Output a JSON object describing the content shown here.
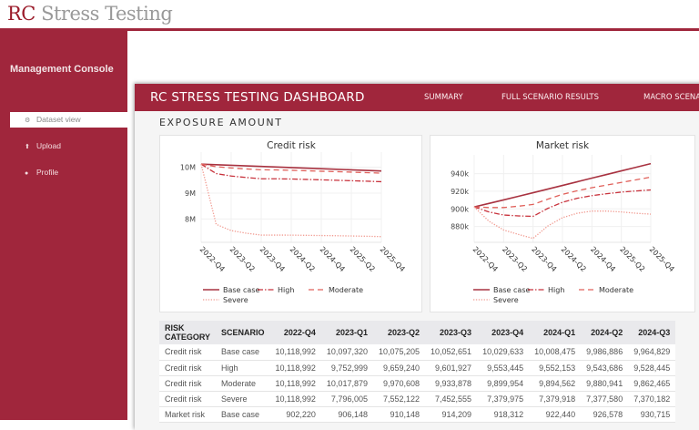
{
  "brand": {
    "rc": "RC",
    "rest": "Stress Testing"
  },
  "sidebar": {
    "title": "Management Console",
    "items": [
      {
        "label": "Dataset view",
        "icon": "gears-icon",
        "active": true
      },
      {
        "label": "Upload",
        "icon": "upload-icon",
        "active": false
      },
      {
        "label": "Profile",
        "icon": "user-icon",
        "active": false
      }
    ]
  },
  "navbar": {
    "title": "RC STRESS TESTING DASHBOARD",
    "links": [
      "SUMMARY",
      "FULL SCENARIO RESULTS",
      "MACRO SCENARIOS"
    ]
  },
  "section_title": "EXPOSURE AMOUNT",
  "colors": {
    "accent": "#a0263c",
    "base": "#a83240",
    "high": "#c8323c",
    "moderate": "#e0605a",
    "severe": "#f19a90"
  },
  "chart_data": [
    {
      "type": "line",
      "title": "Credit risk",
      "x": [
        "2022-Q4",
        "2023-Q1",
        "2023-Q2",
        "2023-Q3",
        "2023-Q4",
        "2024-Q1",
        "2024-Q2",
        "2024-Q3",
        "2024-Q4",
        "2025-Q1",
        "2025-Q2",
        "2025-Q3",
        "2025-Q4"
      ],
      "xticks": [
        "2022-Q4",
        "2023-Q2",
        "2023-Q4",
        "2024-Q2",
        "2024-Q4",
        "2025-Q2",
        "2025-Q4"
      ],
      "yticks": [
        {
          "v": 10000000,
          "label": "10M"
        },
        {
          "v": 9000000,
          "label": "9M"
        },
        {
          "v": 8000000,
          "label": "8M"
        }
      ],
      "ylim": [
        7100000,
        10300000
      ],
      "grid": true,
      "legend": "bottom",
      "series": [
        {
          "name": "Base case",
          "style": "solid",
          "values": [
            10118992,
            10097320,
            10075205,
            10052651,
            10029633,
            10008475,
            9986886,
            9964829,
            9943000,
            9921000,
            9899000,
            9877000,
            9855000
          ]
        },
        {
          "name": "High",
          "style": "dashdot",
          "values": [
            10118992,
            9752999,
            9659240,
            9601927,
            9553445,
            9552153,
            9543686,
            9528445,
            9512000,
            9495000,
            9478000,
            9460000,
            9440000
          ]
        },
        {
          "name": "Moderate",
          "style": "dash",
          "values": [
            10118992,
            10017879,
            9970608,
            9933878,
            9899954,
            9894562,
            9880941,
            9862465,
            9845000,
            9828000,
            9810000,
            9790000,
            9770000
          ]
        },
        {
          "name": "Severe",
          "style": "dot",
          "values": [
            10118992,
            7796005,
            7552122,
            7452555,
            7379975,
            7379918,
            7377580,
            7370182,
            7362000,
            7355000,
            7345000,
            7335000,
            7320000
          ]
        }
      ]
    },
    {
      "type": "line",
      "title": "Market risk",
      "x": [
        "2022-Q4",
        "2023-Q1",
        "2023-Q2",
        "2023-Q3",
        "2023-Q4",
        "2024-Q1",
        "2024-Q2",
        "2024-Q3",
        "2024-Q4",
        "2025-Q1",
        "2025-Q2",
        "2025-Q3",
        "2025-Q4"
      ],
      "xticks": [
        "2022-Q4",
        "2023-Q2",
        "2023-Q4",
        "2024-Q2",
        "2024-Q4",
        "2025-Q2",
        "2025-Q4"
      ],
      "yticks": [
        {
          "v": 940000,
          "label": "940k"
        },
        {
          "v": 920000,
          "label": "920k"
        },
        {
          "v": 900000,
          "label": "900k"
        },
        {
          "v": 880000,
          "label": "880k"
        }
      ],
      "ylim": [
        862000,
        953000
      ],
      "grid": true,
      "legend": "bottom",
      "series": [
        {
          "name": "Base case",
          "style": "solid",
          "values": [
            902220,
            906148,
            910148,
            914209,
            918312,
            922440,
            926578,
            930715,
            934900,
            939000,
            943100,
            947200,
            951300
          ]
        },
        {
          "name": "High",
          "style": "dashdot",
          "values": [
            902220,
            896500,
            893000,
            892000,
            891500,
            900500,
            907500,
            912000,
            915000,
            917200,
            919000,
            920300,
            921500
          ]
        },
        {
          "name": "Moderate",
          "style": "dash",
          "values": [
            902220,
            901500,
            901500,
            903000,
            905000,
            911000,
            916500,
            920500,
            924000,
            927000,
            930000,
            933000,
            936000
          ]
        },
        {
          "name": "Severe",
          "style": "dot",
          "values": [
            902220,
            886000,
            876000,
            871000,
            866500,
            880500,
            890000,
            895000,
            897500,
            897500,
            896500,
            895000,
            894000
          ]
        }
      ]
    }
  ],
  "table": {
    "headers": [
      "RISK CATEGORY",
      "SCENARIO",
      "2022-Q4",
      "2023-Q1",
      "2023-Q2",
      "2023-Q3",
      "2023-Q4",
      "2024-Q1",
      "2024-Q2",
      "2024-Q3"
    ],
    "rows": [
      [
        "Credit risk",
        "Base case",
        "10,118,992",
        "10,097,320",
        "10,075,205",
        "10,052,651",
        "10,029,633",
        "10,008,475",
        "9,986,886",
        "9,964,829"
      ],
      [
        "Credit risk",
        "High",
        "10,118,992",
        "9,752,999",
        "9,659,240",
        "9,601,927",
        "9,553,445",
        "9,552,153",
        "9,543,686",
        "9,528,445"
      ],
      [
        "Credit risk",
        "Moderate",
        "10,118,992",
        "10,017,879",
        "9,970,608",
        "9,933,878",
        "9,899,954",
        "9,894,562",
        "9,880,941",
        "9,862,465"
      ],
      [
        "Credit risk",
        "Severe",
        "10,118,992",
        "7,796,005",
        "7,552,122",
        "7,452,555",
        "7,379,975",
        "7,379,918",
        "7,377,580",
        "7,370,182"
      ],
      [
        "Market risk",
        "Base case",
        "902,220",
        "906,148",
        "910,148",
        "914,209",
        "918,312",
        "922,440",
        "926,578",
        "930,715"
      ]
    ]
  }
}
